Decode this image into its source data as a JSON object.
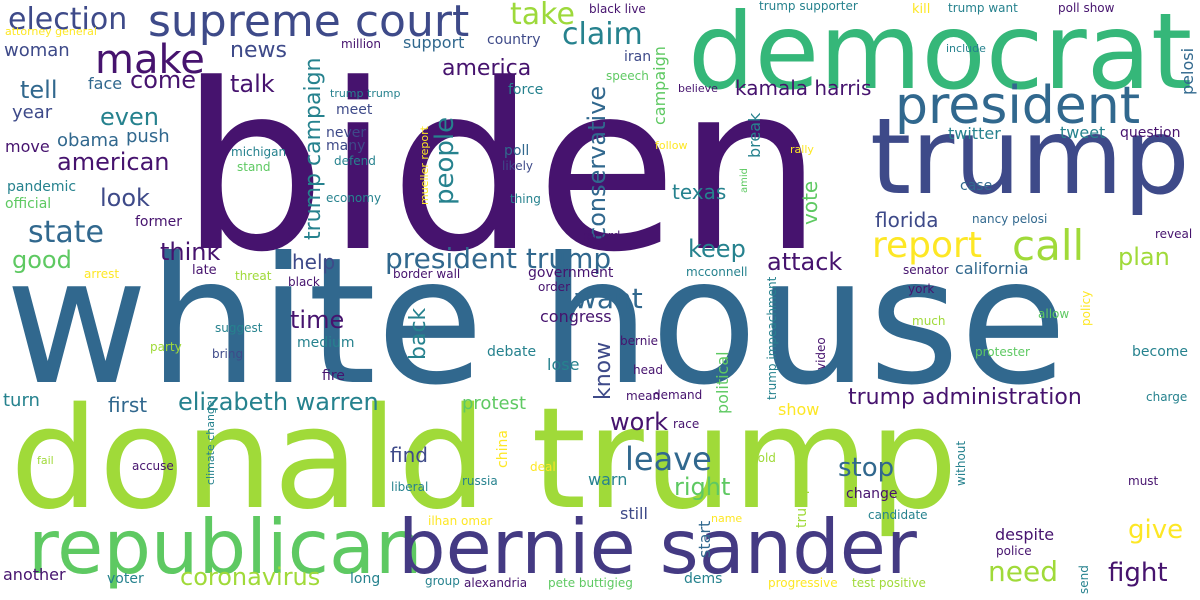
{
  "palette": {
    "dark_purple": "#46136e",
    "indigo": "#3e4a89",
    "slate_blue": "#31688e",
    "teal": "#25848e",
    "green_teal": "#35b779",
    "green": "#5ec962",
    "lime": "#9dd93b",
    "yellow": "#fde725"
  },
  "words": [
    {
      "text": "biden",
      "color": "#46136e"
    },
    {
      "text": "white house",
      "color": "#31688e"
    },
    {
      "text": "donald trump",
      "color": "#a0da39"
    },
    {
      "text": "democrat",
      "color": "#35b779"
    },
    {
      "text": "trump",
      "color": "#3e4a89"
    },
    {
      "text": "republican",
      "color": "#5ec962"
    },
    {
      "text": "bernie sander",
      "color": "#443a83"
    },
    {
      "text": "supreme court",
      "color": "#3e4a89"
    },
    {
      "text": "president",
      "color": "#31688e"
    },
    {
      "text": "make",
      "color": "#46136e"
    },
    {
      "text": "election",
      "color": "#3e4a89"
    },
    {
      "text": "report",
      "color": "#fde725"
    },
    {
      "text": "call",
      "color": "#a0da39"
    },
    {
      "text": "claim",
      "color": "#26828e"
    },
    {
      "text": "take",
      "color": "#9dd93b"
    },
    {
      "text": "president trump",
      "color": "#31688e"
    },
    {
      "text": "elizabeth warren",
      "color": "#26828e"
    },
    {
      "text": "trump administration",
      "color": "#46136e"
    },
    {
      "text": "state",
      "color": "#31688e"
    },
    {
      "text": "people",
      "color": "#26828e"
    },
    {
      "text": "conservative",
      "color": "#31688e"
    },
    {
      "text": "america",
      "color": "#46136e"
    },
    {
      "text": "american",
      "color": "#46136e"
    },
    {
      "text": "leave",
      "color": "#31688e"
    },
    {
      "text": "trump campaign",
      "color": "#26828e"
    },
    {
      "text": "come",
      "color": "#46136e"
    },
    {
      "text": "talk",
      "color": "#46136e"
    },
    {
      "text": "news",
      "color": "#3e4a89"
    },
    {
      "text": "tell",
      "color": "#31688e"
    },
    {
      "text": "even",
      "color": "#26828e"
    },
    {
      "text": "look",
      "color": "#3e4a89"
    },
    {
      "text": "think",
      "color": "#46136e"
    },
    {
      "text": "good",
      "color": "#5ec962"
    },
    {
      "text": "want",
      "color": "#31688e"
    },
    {
      "text": "back",
      "color": "#26828e"
    },
    {
      "text": "know",
      "color": "#3e4a89"
    },
    {
      "text": "need",
      "color": "#a0da39"
    },
    {
      "text": "fight",
      "color": "#46136e"
    },
    {
      "text": "give",
      "color": "#fde725"
    },
    {
      "text": "stop",
      "color": "#31688e"
    },
    {
      "text": "right",
      "color": "#5ec962"
    },
    {
      "text": "work",
      "color": "#46136e"
    },
    {
      "text": "time",
      "color": "#46136e"
    },
    {
      "text": "coronavirus",
      "color": "#a0da39"
    },
    {
      "text": "plan",
      "color": "#a0da39"
    },
    {
      "text": "attack",
      "color": "#46136e"
    },
    {
      "text": "keep",
      "color": "#26828e"
    },
    {
      "text": "florida",
      "color": "#3e4a89"
    },
    {
      "text": "vote",
      "color": "#5ec962"
    },
    {
      "text": "texas",
      "color": "#26828e"
    },
    {
      "text": "kamala harris",
      "color": "#46136e"
    },
    {
      "text": "campaign",
      "color": "#5ec962"
    },
    {
      "text": "help",
      "color": "#3e4a89"
    },
    {
      "text": "find",
      "color": "#3e4a89"
    },
    {
      "text": "first",
      "color": "#31688e"
    },
    {
      "text": "turn",
      "color": "#26828e"
    },
    {
      "text": "protest",
      "color": "#5ec962"
    },
    {
      "text": "push",
      "color": "#31688e"
    },
    {
      "text": "obama",
      "color": "#31688e"
    },
    {
      "text": "year",
      "color": "#3e4a89"
    },
    {
      "text": "move",
      "color": "#46136e"
    },
    {
      "text": "face",
      "color": "#31688e"
    },
    {
      "text": "woman",
      "color": "#3e4a89"
    },
    {
      "text": "support",
      "color": "#31688e"
    },
    {
      "text": "country",
      "color": "#3e4a89"
    },
    {
      "text": "iran",
      "color": "#3e4a89"
    },
    {
      "text": "speech",
      "color": "#5ec962"
    },
    {
      "text": "pelosi",
      "color": "#31688e"
    },
    {
      "text": "twitter",
      "color": "#26828e"
    },
    {
      "text": "tweet",
      "color": "#26828e"
    },
    {
      "text": "question",
      "color": "#46136e"
    },
    {
      "text": "break",
      "color": "#26828e"
    },
    {
      "text": "poll",
      "color": "#31688e"
    },
    {
      "text": "likely",
      "color": "#3e4a89"
    },
    {
      "text": "thing",
      "color": "#26828e"
    },
    {
      "text": "never",
      "color": "#3e4a89"
    },
    {
      "text": "many",
      "color": "#3e4a89"
    },
    {
      "text": "meet",
      "color": "#3e4a89"
    },
    {
      "text": "defend",
      "color": "#26828e"
    },
    {
      "text": "economy",
      "color": "#26828e"
    },
    {
      "text": "michigan",
      "color": "#26828e"
    },
    {
      "text": "stand",
      "color": "#5ec962"
    },
    {
      "text": "pandemic",
      "color": "#26828e"
    },
    {
      "text": "official",
      "color": "#5ec962"
    },
    {
      "text": "former",
      "color": "#46136e"
    },
    {
      "text": "force",
      "color": "#26828e"
    },
    {
      "text": "case",
      "color": "#31688e"
    },
    {
      "text": "nancy pelosi",
      "color": "#31688e"
    },
    {
      "text": "reveal",
      "color": "#46136e"
    },
    {
      "text": "california",
      "color": "#31688e"
    },
    {
      "text": "senator",
      "color": "#46136e"
    },
    {
      "text": "york",
      "color": "#46136e"
    },
    {
      "text": "much",
      "color": "#a0da39"
    },
    {
      "text": "allow",
      "color": "#5ec962"
    },
    {
      "text": "policy",
      "color": "#fde725"
    },
    {
      "text": "protester",
      "color": "#5ec962"
    },
    {
      "text": "become",
      "color": "#26828e"
    },
    {
      "text": "charge",
      "color": "#26828e"
    },
    {
      "text": "must",
      "color": "#46136e"
    },
    {
      "text": "candidate",
      "color": "#26828e"
    },
    {
      "text": "police",
      "color": "#46136e"
    },
    {
      "text": "send",
      "color": "#26828e"
    },
    {
      "text": "test positive",
      "color": "#a0da39"
    },
    {
      "text": "progressive",
      "color": "#fde725"
    },
    {
      "text": "dems",
      "color": "#26828e"
    },
    {
      "text": "pete buttigieg",
      "color": "#5ec962"
    },
    {
      "text": "alexandria",
      "color": "#46136e"
    },
    {
      "text": "group",
      "color": "#26828e"
    },
    {
      "text": "long",
      "color": "#26828e"
    },
    {
      "text": "voter",
      "color": "#26828e"
    },
    {
      "text": "another",
      "color": "#46136e"
    },
    {
      "text": "despite",
      "color": "#46136e"
    },
    {
      "text": "change",
      "color": "#46136e"
    },
    {
      "text": "still",
      "color": "#3e4a89"
    },
    {
      "text": "start",
      "color": "#31688e"
    },
    {
      "text": "warn",
      "color": "#26828e"
    },
    {
      "text": "trump call",
      "color": "#a0da39"
    },
    {
      "text": "name",
      "color": "#fde725"
    },
    {
      "text": "hold",
      "color": "#a0da39"
    },
    {
      "text": "without",
      "color": "#26828e"
    },
    {
      "text": "ilhan omar",
      "color": "#fde725"
    },
    {
      "text": "russia",
      "color": "#26828e"
    },
    {
      "text": "liberal",
      "color": "#26828e"
    },
    {
      "text": "deal",
      "color": "#fde725"
    },
    {
      "text": "china",
      "color": "#fde725"
    },
    {
      "text": "accuse",
      "color": "#46136e"
    },
    {
      "text": "climate change",
      "color": "#26828e"
    },
    {
      "text": "fail",
      "color": "#a0da39"
    },
    {
      "text": "attorney general",
      "color": "#fde725"
    },
    {
      "text": "kill",
      "color": "#fde725"
    },
    {
      "text": "trump want",
      "color": "#26828e"
    },
    {
      "text": "poll show",
      "color": "#46136e"
    },
    {
      "text": "include",
      "color": "#26828e"
    },
    {
      "text": "trump supporter",
      "color": "#26828e"
    },
    {
      "text": "black live",
      "color": "#46136e"
    },
    {
      "text": "million",
      "color": "#46136e"
    },
    {
      "text": "trump trump",
      "color": "#26828e"
    },
    {
      "text": "believe",
      "color": "#46136e"
    },
    {
      "text": "mueller report",
      "color": "#fde725"
    },
    {
      "text": "follow",
      "color": "#fde725"
    },
    {
      "text": "rally",
      "color": "#fde725"
    },
    {
      "text": "amid",
      "color": "#5ec962"
    },
    {
      "text": "record",
      "color": "#46136e"
    },
    {
      "text": "government",
      "color": "#46136e"
    },
    {
      "text": "order",
      "color": "#46136e"
    },
    {
      "text": "mcconnell",
      "color": "#26828e"
    },
    {
      "text": "border wall",
      "color": "#46136e"
    },
    {
      "text": "congress",
      "color": "#46136e"
    },
    {
      "text": "debate",
      "color": "#26828e"
    },
    {
      "text": "lose",
      "color": "#26828e"
    },
    {
      "text": "political",
      "color": "#5ec962"
    },
    {
      "text": "bernie",
      "color": "#46136e"
    },
    {
      "text": "head",
      "color": "#46136e"
    },
    {
      "text": "trump impeachment",
      "color": "#26828e"
    },
    {
      "text": "video",
      "color": "#46136e"
    },
    {
      "text": "mean",
      "color": "#46136e"
    },
    {
      "text": "demand",
      "color": "#46136e"
    },
    {
      "text": "race",
      "color": "#46136e"
    },
    {
      "text": "show",
      "color": "#fde725"
    },
    {
      "text": "threat",
      "color": "#a0da39"
    },
    {
      "text": "late",
      "color": "#46136e"
    },
    {
      "text": "black",
      "color": "#46136e"
    },
    {
      "text": "arrest",
      "color": "#fde725"
    },
    {
      "text": "suggest",
      "color": "#26828e"
    },
    {
      "text": "bring",
      "color": "#3e4a89"
    },
    {
      "text": "party",
      "color": "#a0da39"
    },
    {
      "text": "medium",
      "color": "#26828e"
    },
    {
      "text": "fire",
      "color": "#46136e"
    }
  ]
}
